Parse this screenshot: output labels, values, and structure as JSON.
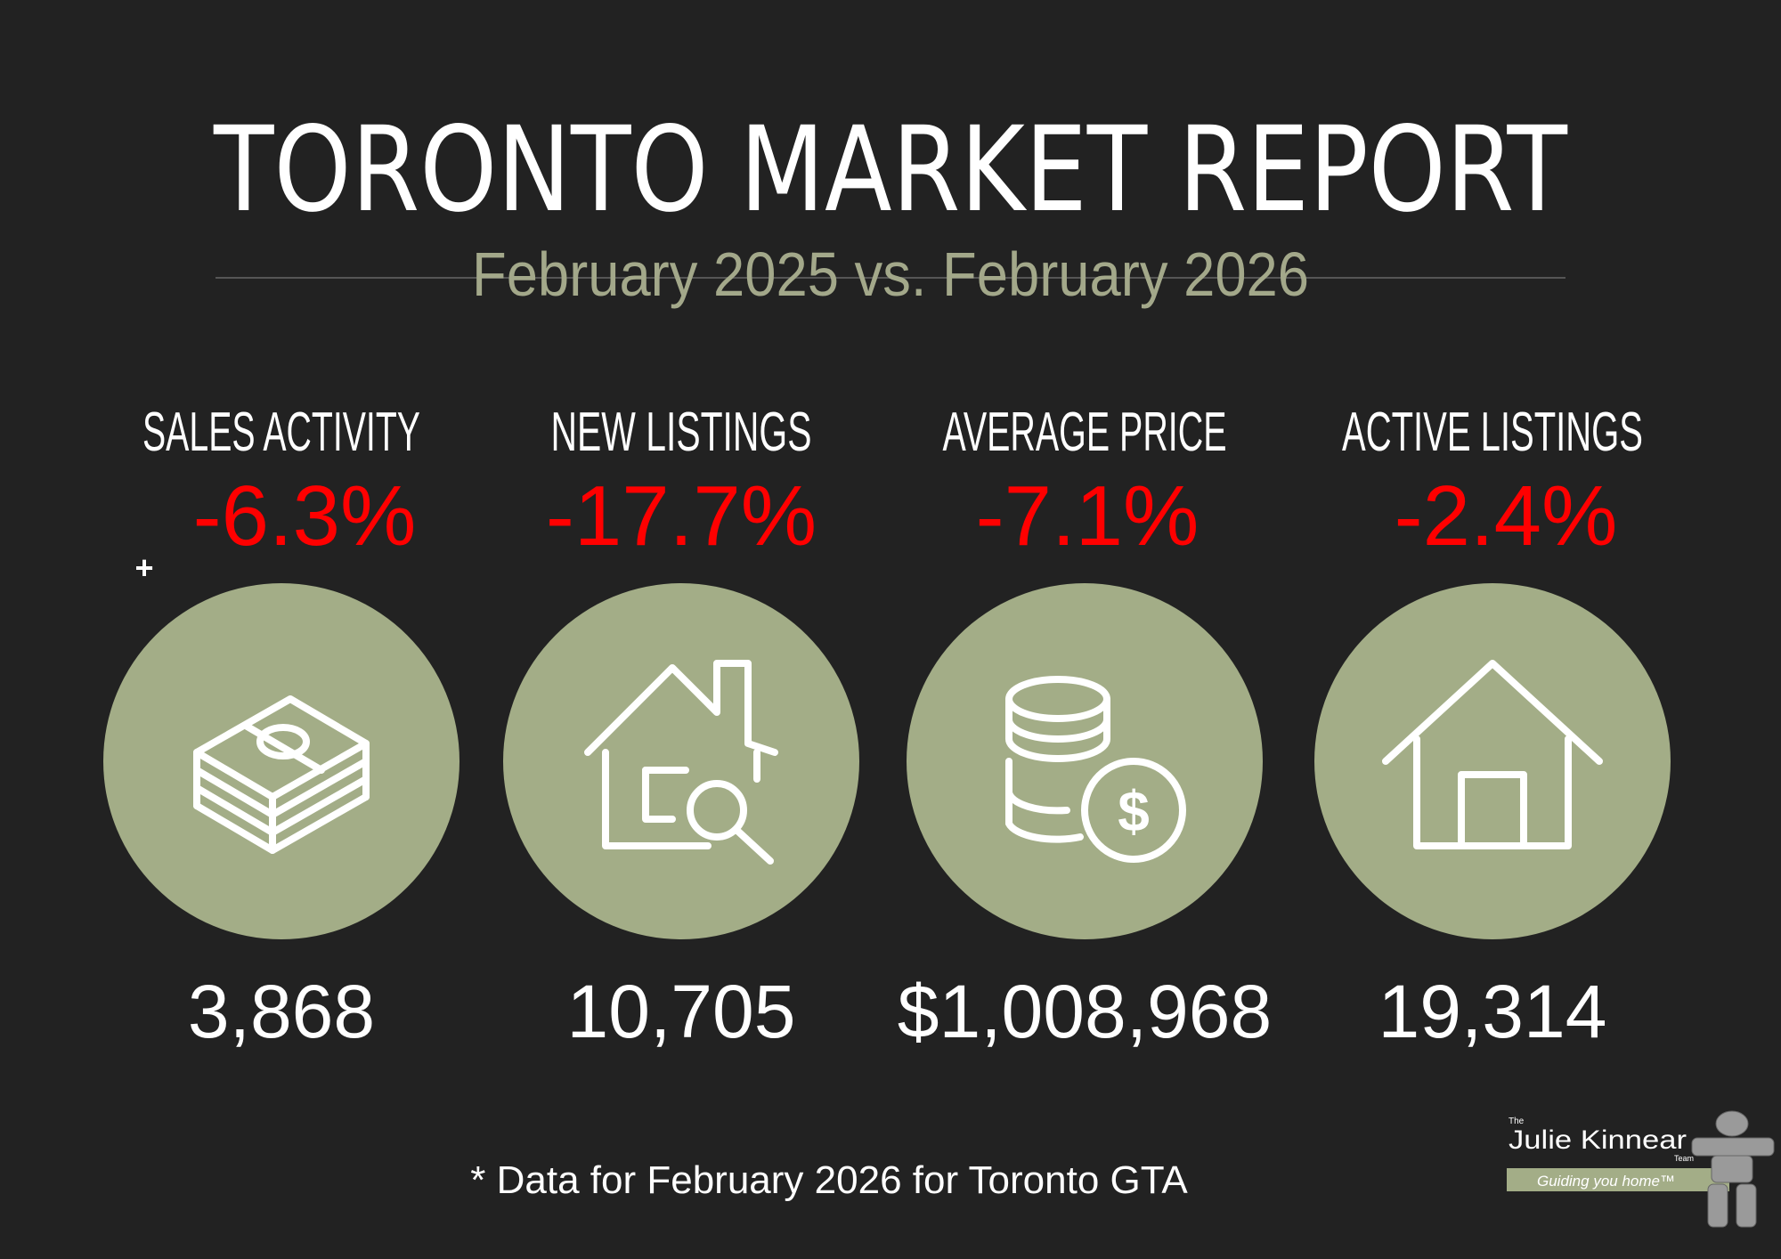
{
  "header": {
    "title": "TORONTO MARKET REPORT",
    "subtitle": "February 2025 vs. February 2026"
  },
  "metrics": [
    {
      "label": "SALES ACTIVITY",
      "change": "-6.3%",
      "value": "3,868"
    },
    {
      "label": "NEW LISTINGS",
      "change": "-17.7%",
      "value": "10,705"
    },
    {
      "label": "AVERAGE PRICE",
      "change": "-7.1%",
      "value": "$1,008,968"
    },
    {
      "label": "ACTIVE LISTINGS",
      "change": "-2.4%",
      "value": "19,314"
    }
  ],
  "stray_mark": "+",
  "footnote": "* Data for February 2026 for Toronto GTA",
  "logo": {
    "prefix": "The",
    "name": "Julie Kinnear",
    "suffix": "Team",
    "tagline": "Guiding you home™"
  }
}
